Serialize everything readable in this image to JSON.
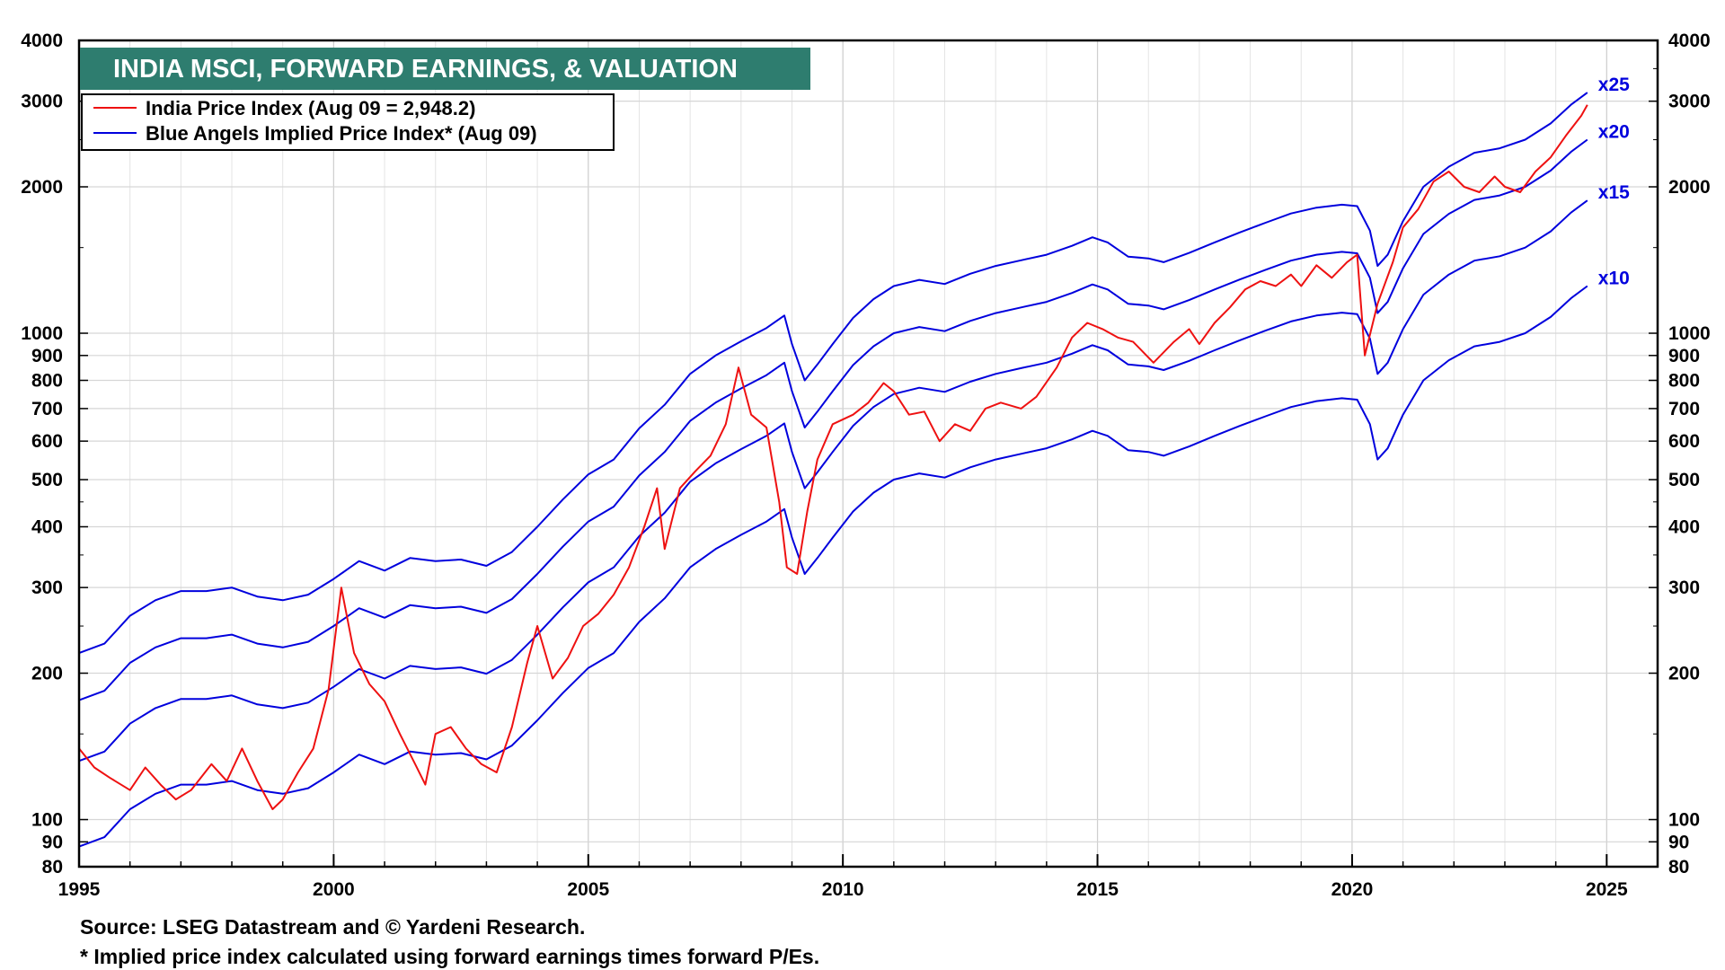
{
  "chart_data": {
    "type": "line",
    "title": "INDIA MSCI, FORWARD EARNINGS, & VALUATION",
    "y_scale": "log",
    "xlim": [
      1995,
      2026
    ],
    "ylim": [
      80,
      4000
    ],
    "x_ticks": [
      "1995",
      "2000",
      "2005",
      "2010",
      "2015",
      "2020",
      "2025"
    ],
    "y_ticks": [
      "4000",
      "3000",
      "2000",
      "1000",
      "900",
      "800",
      "700",
      "600",
      "500",
      "400",
      "300",
      "200",
      "100",
      "90",
      "80"
    ],
    "grid": true,
    "legend_position": "top-left",
    "colors": {
      "title_bg": "#2e7d6f",
      "price": "#ee1111",
      "implied": "#0000dd"
    },
    "series": [
      {
        "name": "India Price Index (Aug 09 = 2,948.2)",
        "color": "#ee1111",
        "points": [
          [
            1995.0,
            140
          ],
          [
            1995.3,
            128
          ],
          [
            1995.6,
            122
          ],
          [
            1996.0,
            115
          ],
          [
            1996.3,
            128
          ],
          [
            1996.6,
            118
          ],
          [
            1996.9,
            110
          ],
          [
            1997.2,
            115
          ],
          [
            1997.6,
            130
          ],
          [
            1997.9,
            120
          ],
          [
            1998.2,
            140
          ],
          [
            1998.5,
            120
          ],
          [
            1998.8,
            105
          ],
          [
            1999.0,
            110
          ],
          [
            1999.3,
            125
          ],
          [
            1999.6,
            140
          ],
          [
            1999.9,
            185
          ],
          [
            2000.15,
            300
          ],
          [
            2000.4,
            220
          ],
          [
            2000.7,
            190
          ],
          [
            2001.0,
            175
          ],
          [
            2001.3,
            150
          ],
          [
            2001.6,
            130
          ],
          [
            2001.8,
            118
          ],
          [
            2002.0,
            150
          ],
          [
            2002.3,
            155
          ],
          [
            2002.6,
            140
          ],
          [
            2002.9,
            130
          ],
          [
            2003.2,
            125
          ],
          [
            2003.5,
            155
          ],
          [
            2003.8,
            210
          ],
          [
            2004.0,
            250
          ],
          [
            2004.3,
            195
          ],
          [
            2004.6,
            215
          ],
          [
            2004.9,
            250
          ],
          [
            2005.2,
            265
          ],
          [
            2005.5,
            290
          ],
          [
            2005.8,
            330
          ],
          [
            2006.1,
            400
          ],
          [
            2006.35,
            480
          ],
          [
            2006.5,
            360
          ],
          [
            2006.8,
            480
          ],
          [
            2007.1,
            520
          ],
          [
            2007.4,
            560
          ],
          [
            2007.7,
            650
          ],
          [
            2007.95,
            850
          ],
          [
            2008.2,
            680
          ],
          [
            2008.5,
            640
          ],
          [
            2008.75,
            450
          ],
          [
            2008.9,
            330
          ],
          [
            2009.1,
            320
          ],
          [
            2009.3,
            430
          ],
          [
            2009.5,
            550
          ],
          [
            2009.8,
            650
          ],
          [
            2010.2,
            680
          ],
          [
            2010.5,
            720
          ],
          [
            2010.8,
            790
          ],
          [
            2011.0,
            760
          ],
          [
            2011.3,
            680
          ],
          [
            2011.6,
            690
          ],
          [
            2011.9,
            600
          ],
          [
            2012.2,
            650
          ],
          [
            2012.5,
            630
          ],
          [
            2012.8,
            700
          ],
          [
            2013.1,
            720
          ],
          [
            2013.5,
            700
          ],
          [
            2013.8,
            740
          ],
          [
            2014.2,
            850
          ],
          [
            2014.5,
            980
          ],
          [
            2014.8,
            1050
          ],
          [
            2015.1,
            1020
          ],
          [
            2015.4,
            980
          ],
          [
            2015.7,
            960
          ],
          [
            2016.1,
            870
          ],
          [
            2016.5,
            960
          ],
          [
            2016.8,
            1020
          ],
          [
            2017.0,
            950
          ],
          [
            2017.3,
            1050
          ],
          [
            2017.6,
            1130
          ],
          [
            2017.9,
            1230
          ],
          [
            2018.2,
            1280
          ],
          [
            2018.5,
            1250
          ],
          [
            2018.8,
            1320
          ],
          [
            2019.0,
            1250
          ],
          [
            2019.3,
            1380
          ],
          [
            2019.6,
            1300
          ],
          [
            2019.9,
            1400
          ],
          [
            2020.1,
            1450
          ],
          [
            2020.25,
            900
          ],
          [
            2020.5,
            1150
          ],
          [
            2020.8,
            1400
          ],
          [
            2021.0,
            1650
          ],
          [
            2021.3,
            1800
          ],
          [
            2021.6,
            2050
          ],
          [
            2021.9,
            2150
          ],
          [
            2022.2,
            2000
          ],
          [
            2022.5,
            1950
          ],
          [
            2022.8,
            2100
          ],
          [
            2023.0,
            2000
          ],
          [
            2023.3,
            1950
          ],
          [
            2023.6,
            2150
          ],
          [
            2023.9,
            2300
          ],
          [
            2024.2,
            2550
          ],
          [
            2024.5,
            2800
          ],
          [
            2024.62,
            2948
          ]
        ]
      },
      {
        "name": "Blue Angels Implied Price Index* (Aug 09)",
        "color": "#0000dd",
        "multiples": [
          "x25",
          "x20",
          "x15",
          "x10"
        ],
        "base_points": [
          [
            1995.0,
            8.8
          ],
          [
            1995.5,
            9.2
          ],
          [
            1996.0,
            10.5
          ],
          [
            1996.5,
            11.3
          ],
          [
            1997.0,
            11.8
          ],
          [
            1997.5,
            11.8
          ],
          [
            1998.0,
            12.0
          ],
          [
            1998.5,
            11.5
          ],
          [
            1999.0,
            11.3
          ],
          [
            1999.5,
            11.6
          ],
          [
            2000.0,
            12.5
          ],
          [
            2000.5,
            13.6
          ],
          [
            2001.0,
            13.0
          ],
          [
            2001.5,
            13.8
          ],
          [
            2002.0,
            13.6
          ],
          [
            2002.5,
            13.7
          ],
          [
            2003.0,
            13.3
          ],
          [
            2003.5,
            14.2
          ],
          [
            2004.0,
            16.0
          ],
          [
            2004.5,
            18.2
          ],
          [
            2005.0,
            20.5
          ],
          [
            2005.5,
            22.0
          ],
          [
            2006.0,
            25.5
          ],
          [
            2006.5,
            28.5
          ],
          [
            2007.0,
            33.0
          ],
          [
            2007.5,
            36.0
          ],
          [
            2008.0,
            38.5
          ],
          [
            2008.5,
            41.0
          ],
          [
            2008.85,
            43.5
          ],
          [
            2009.0,
            38.0
          ],
          [
            2009.25,
            32.0
          ],
          [
            2009.5,
            34.5
          ],
          [
            2009.8,
            38.0
          ],
          [
            2010.2,
            43.0
          ],
          [
            2010.6,
            47.0
          ],
          [
            2011.0,
            50.0
          ],
          [
            2011.5,
            51.5
          ],
          [
            2012.0,
            50.5
          ],
          [
            2012.5,
            53.0
          ],
          [
            2013.0,
            55.0
          ],
          [
            2013.5,
            56.5
          ],
          [
            2014.0,
            58.0
          ],
          [
            2014.5,
            60.5
          ],
          [
            2014.9,
            63.0
          ],
          [
            2015.2,
            61.5
          ],
          [
            2015.6,
            57.5
          ],
          [
            2016.0,
            57.0
          ],
          [
            2016.3,
            56.0
          ],
          [
            2016.8,
            58.5
          ],
          [
            2017.3,
            61.5
          ],
          [
            2017.8,
            64.5
          ],
          [
            2018.3,
            67.5
          ],
          [
            2018.8,
            70.5
          ],
          [
            2019.3,
            72.5
          ],
          [
            2019.8,
            73.5
          ],
          [
            2020.1,
            73.0
          ],
          [
            2020.35,
            65.0
          ],
          [
            2020.5,
            55.0
          ],
          [
            2020.7,
            58.0
          ],
          [
            2021.0,
            68.0
          ],
          [
            2021.4,
            80.0
          ],
          [
            2021.9,
            88.0
          ],
          [
            2022.4,
            94.0
          ],
          [
            2022.9,
            96.0
          ],
          [
            2023.4,
            100.0
          ],
          [
            2023.9,
            108.0
          ],
          [
            2024.3,
            118.0
          ],
          [
            2024.62,
            125.0
          ]
        ]
      }
    ],
    "footnotes": [
      "Source: LSEG Datastream and © Yardeni Research.",
      "* Implied price index calculated using forward earnings times forward P/Es."
    ]
  }
}
